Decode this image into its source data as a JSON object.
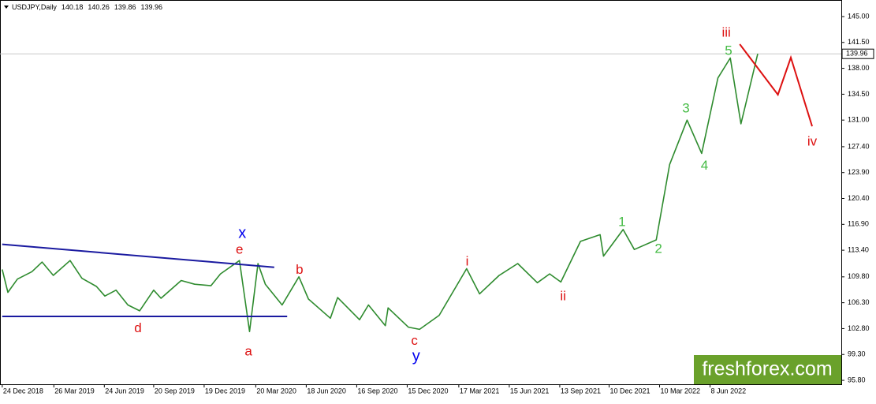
{
  "chart_data": {
    "type": "line",
    "symbol": "USDJPY,Daily",
    "ohlc": [
      140.18,
      140.26,
      139.86,
      139.96
    ],
    "last_price": 139.96,
    "watermark": "freshforex.com",
    "xlim": [
      "2018-12-20",
      "2023-01-28"
    ],
    "ylim": [
      95.27,
      147.24
    ],
    "xticks": [
      {
        "value": "2018-12-24",
        "label": "24 Dec 2018"
      },
      {
        "value": "2019-03-26",
        "label": "26 Mar 2019"
      },
      {
        "value": "2019-06-24",
        "label": "24 Jun 2019"
      },
      {
        "value": "2019-09-20",
        "label": "20 Sep 2019"
      },
      {
        "value": "2019-12-19",
        "label": "19 Dec 2019"
      },
      {
        "value": "2020-03-20",
        "label": "20 Mar 2020"
      },
      {
        "value": "2020-06-18",
        "label": "18 Jun 2020"
      },
      {
        "value": "2020-09-16",
        "label": "16 Sep 2020"
      },
      {
        "value": "2020-12-15",
        "label": "15 Dec 2020"
      },
      {
        "value": "2021-03-17",
        "label": "17 Mar 2021"
      },
      {
        "value": "2021-06-15",
        "label": "15 Jun 2021"
      },
      {
        "value": "2021-09-13",
        "label": "13 Sep 2021"
      },
      {
        "value": "2021-12-10",
        "label": "10 Dec 2021"
      },
      {
        "value": "2022-03-10",
        "label": "10 Mar 2022"
      },
      {
        "value": "2022-06-08",
        "label": "8 Jun 2022"
      }
    ],
    "yticks": [
      {
        "value": 145,
        "label": "145.00"
      },
      {
        "value": 141.5,
        "label": "141.50"
      },
      {
        "value": 138,
        "label": "138.00"
      },
      {
        "value": 134.5,
        "label": "134.50"
      },
      {
        "value": 131,
        "label": "131.00"
      },
      {
        "value": 127.4,
        "label": "127.40"
      },
      {
        "value": 123.9,
        "label": "123.90"
      },
      {
        "value": 120.4,
        "label": "120.40"
      },
      {
        "value": 116.9,
        "label": "116.90"
      },
      {
        "value": 113.4,
        "label": "113.40"
      },
      {
        "value": 109.8,
        "label": "109.80"
      },
      {
        "value": 106.3,
        "label": "106.30"
      },
      {
        "value": 102.8,
        "label": "102.80"
      },
      {
        "value": 99.3,
        "label": "99.30"
      },
      {
        "value": 95.8,
        "label": "95.80"
      }
    ],
    "series": [
      {
        "color": "#2e8b2e",
        "x": [
          "2018-12-24",
          "2019-01-03",
          "2019-01-20",
          "2019-02-15",
          "2019-03-05",
          "2019-03-25",
          "2019-04-24",
          "2019-05-15",
          "2019-06-10",
          "2019-06-25",
          "2019-07-15",
          "2019-08-05",
          "2019-08-26",
          "2019-09-20",
          "2019-10-03",
          "2019-11-08",
          "2019-12-02",
          "2019-12-31",
          "2020-01-17",
          "2020-02-20",
          "2020-03-09",
          "2020-03-24",
          "2020-04-06",
          "2020-05-06",
          "2020-06-05",
          "2020-06-22",
          "2020-07-31",
          "2020-08-13",
          "2020-09-21",
          "2020-10-07",
          "2020-11-06",
          "2020-11-11",
          "2020-12-17",
          "2021-01-06",
          "2021-02-10",
          "2021-03-31",
          "2021-04-23",
          "2021-05-28",
          "2021-06-30",
          "2021-08-04",
          "2021-08-26",
          "2021-09-15",
          "2021-10-20",
          "2021-11-24",
          "2021-11-30",
          "2022-01-04",
          "2022-01-24",
          "2022-03-04",
          "2022-03-28",
          "2022-04-28",
          "2022-05-24",
          "2022-06-22",
          "2022-07-14",
          "2022-08-02",
          "2022-08-10",
          "2022-09-01"
        ],
        "values": [
          110.8,
          107.7,
          109.5,
          110.5,
          111.8,
          110.0,
          112.0,
          109.6,
          108.5,
          107.2,
          108.0,
          106.0,
          105.2,
          108.0,
          106.9,
          109.3,
          108.8,
          108.6,
          110.2,
          112.0,
          102.4,
          111.6,
          108.8,
          106.0,
          109.8,
          106.8,
          104.2,
          107.0,
          104.0,
          106.0,
          103.2,
          105.6,
          103.0,
          102.7,
          104.6,
          110.9,
          107.5,
          110.0,
          111.6,
          109.0,
          110.2,
          109.1,
          114.6,
          115.5,
          112.6,
          116.2,
          113.5,
          114.8,
          125.0,
          131.0,
          126.5,
          136.7,
          139.4,
          130.5,
          133.0,
          139.96
        ]
      }
    ],
    "lines": [
      {
        "color": "#1a1aa0",
        "x": [
          "2018-12-24",
          "2020-04-22"
        ],
        "y": [
          114.2,
          111.1
        ]
      },
      {
        "color": "#1a1aa0",
        "x": [
          "2018-12-24",
          "2020-05-15"
        ],
        "y": [
          104.45,
          104.45
        ]
      },
      {
        "color": "#dd1111",
        "x": [
          "2022-07-31",
          "2022-10-07",
          "2022-10-30",
          "2022-12-07"
        ],
        "y": [
          141.26,
          134.43,
          139.45,
          130.16
        ]
      }
    ],
    "annotations": [
      {
        "text": "x",
        "x": "2020-02-25",
        "y": 115.65,
        "color": "#0000ee"
      },
      {
        "text": "e",
        "x": "2020-02-20",
        "y": 113.4,
        "color": "#dd1111"
      },
      {
        "text": "b",
        "x": "2020-06-06",
        "y": 110.7,
        "color": "#dd1111"
      },
      {
        "text": "d",
        "x": "2019-08-23",
        "y": 102.8,
        "color": "#dd1111"
      },
      {
        "text": "a",
        "x": "2020-03-07",
        "y": 99.65,
        "color": "#dd1111"
      },
      {
        "text": "c",
        "x": "2020-12-28",
        "y": 101.1,
        "color": "#dd1111"
      },
      {
        "text": "y",
        "x": "2020-12-31",
        "y": 99.0,
        "color": "#0000ee"
      },
      {
        "text": "i",
        "x": "2021-04-01",
        "y": 111.8,
        "color": "#dd1111"
      },
      {
        "text": "ii",
        "x": "2021-09-19",
        "y": 107.1,
        "color": "#dd1111"
      },
      {
        "text": "1",
        "x": "2022-01-02",
        "y": 117.15,
        "color": "#44bb44"
      },
      {
        "text": "2",
        "x": "2022-03-08",
        "y": 113.5,
        "color": "#44bb44"
      },
      {
        "text": "3",
        "x": "2022-04-26",
        "y": 132.5,
        "color": "#44bb44"
      },
      {
        "text": "4",
        "x": "2022-05-29",
        "y": 124.8,
        "color": "#44bb44"
      },
      {
        "text": "5",
        "x": "2022-07-11",
        "y": 140.3,
        "color": "#44bb44"
      },
      {
        "text": "iii",
        "x": "2022-07-07",
        "y": 142.76,
        "color": "#dd1111"
      },
      {
        "text": "iv",
        "x": "2022-12-07",
        "y": 128.03,
        "color": "#dd1111"
      }
    ]
  }
}
